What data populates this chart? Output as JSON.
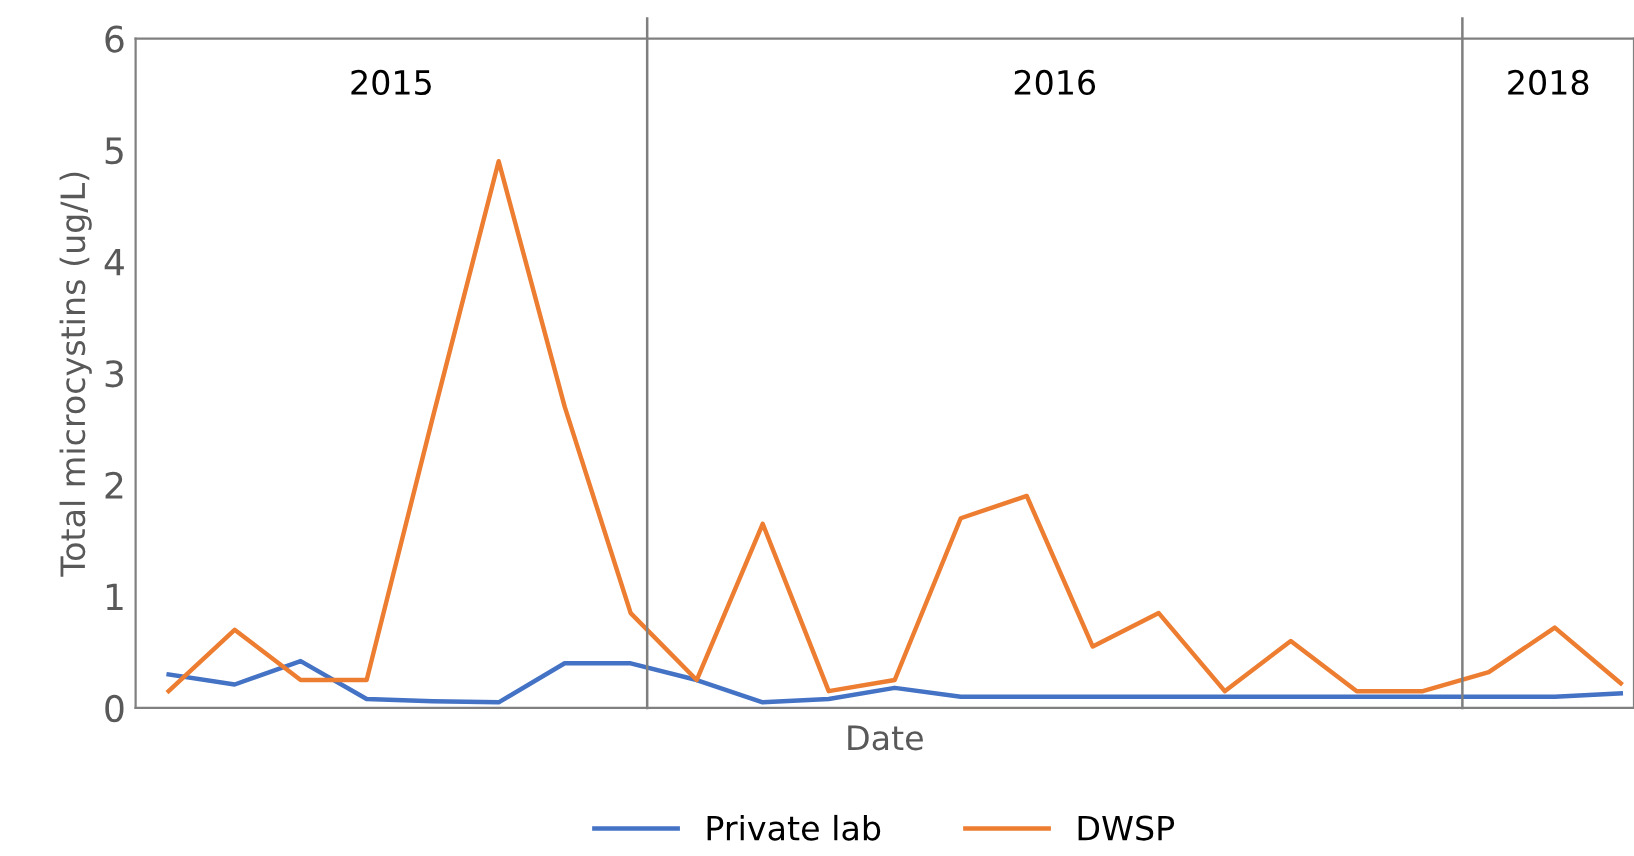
{
  "chart_data": {
    "type": "line",
    "xlabel": "Date",
    "ylabel": "Total microcystins (ug/L)",
    "categories": [
      null,
      null,
      null,
      null,
      null,
      null,
      null,
      null,
      null,
      null,
      null,
      null,
      null,
      null,
      null,
      null,
      null,
      null,
      null,
      null,
      null,
      null,
      null
    ],
    "ylim": [
      0,
      6
    ],
    "yticks": [
      0,
      1,
      2,
      3,
      4,
      5,
      6
    ],
    "tick_labels": "y",
    "grid": false,
    "legend": "bottom",
    "series": [
      {
        "name": "Private lab",
        "color": "#4472c4",
        "values": [
          0.3,
          0.21,
          0.42,
          0.08,
          0.06,
          0.05,
          0.4,
          0.4,
          0.25,
          0.05,
          0.08,
          0.18,
          0.1,
          0.1,
          0.1,
          0.1,
          0.1,
          0.1,
          0.1,
          0.1,
          0.1,
          0.1,
          0.13
        ]
      },
      {
        "name": "DWSP",
        "color": "#ed7d31",
        "values": [
          0.15,
          0.7,
          0.25,
          0.25,
          2.6,
          4.9,
          2.7,
          0.85,
          0.25,
          1.65,
          0.15,
          0.25,
          1.7,
          1.9,
          0.55,
          0.85,
          0.15,
          0.6,
          0.15,
          0.15,
          0.32,
          0.72,
          0.22
        ]
      }
    ],
    "annotations": [
      "2015",
      "2016",
      "2018"
    ]
  }
}
